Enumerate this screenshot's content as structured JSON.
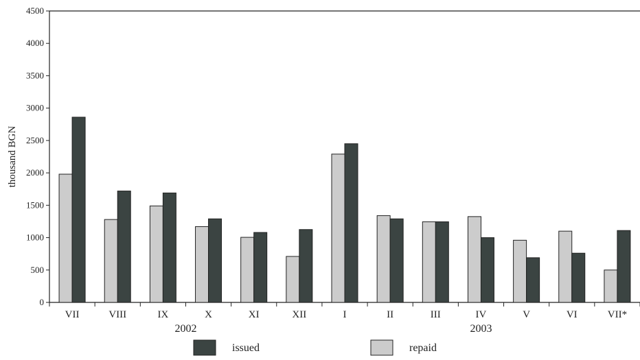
{
  "chart_data": {
    "type": "bar",
    "ylabel": "thousand BGN",
    "ylim": [
      0,
      4500
    ],
    "yticks": [
      0,
      500,
      1000,
      1500,
      2000,
      2500,
      3000,
      3500,
      4000,
      4500
    ],
    "categories": [
      "VII",
      "VIII",
      "IX",
      "X",
      "XI",
      "XII",
      "I",
      "II",
      "III",
      "IV",
      "V",
      "VI",
      "VII*"
    ],
    "year_groups": [
      {
        "label": "2002",
        "from": 0,
        "to": 5
      },
      {
        "label": "2003",
        "from": 6,
        "to": 12
      }
    ],
    "series": [
      {
        "name": "repaid",
        "color": "#cccccc",
        "values": [
          1980,
          1280,
          1490,
          1170,
          1005,
          710,
          2290,
          1340,
          1245,
          1325,
          960,
          1100,
          500
        ]
      },
      {
        "name": "issued",
        "color": "#3b4442",
        "values": [
          2860,
          1720,
          1690,
          1290,
          1080,
          1125,
          2450,
          1290,
          1245,
          1000,
          690,
          760,
          1110
        ]
      }
    ],
    "legend": {
      "placement": "bottom-center",
      "order": [
        "issued",
        "repaid"
      ]
    },
    "grid": false
  }
}
